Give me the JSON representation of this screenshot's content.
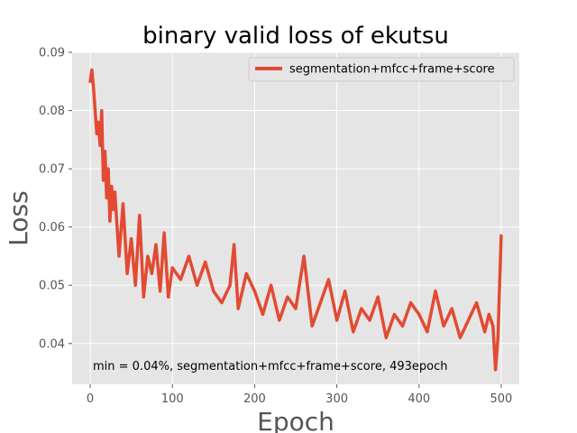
{
  "chart_data": {
    "type": "line",
    "title": "binary valid loss of ekutsu",
    "xlabel": "Epoch",
    "ylabel": "Loss",
    "xlim": [
      -22,
      522
    ],
    "ylim": [
      0.033,
      0.09
    ],
    "xticks": [
      0,
      100,
      200,
      300,
      400,
      500
    ],
    "yticks": [
      0.04,
      0.05,
      0.06,
      0.07,
      0.08,
      0.09
    ],
    "xtick_labels": [
      "0",
      "100",
      "200",
      "300",
      "400",
      "500"
    ],
    "ytick_labels": [
      "0.04",
      "0.05",
      "0.06",
      "0.07",
      "0.08",
      "0.09"
    ],
    "grid": true,
    "background": "#e5e5e5",
    "legend_position": "top-right",
    "series": [
      {
        "name": "segmentation+mfcc+frame+score",
        "color": "#e24a33",
        "x": [
          0,
          2,
          4,
          6,
          8,
          10,
          12,
          14,
          16,
          18,
          20,
          22,
          24,
          26,
          28,
          30,
          35,
          40,
          45,
          50,
          55,
          60,
          65,
          70,
          75,
          80,
          85,
          90,
          95,
          100,
          110,
          120,
          130,
          140,
          150,
          160,
          170,
          175,
          180,
          190,
          200,
          210,
          220,
          230,
          240,
          250,
          260,
          270,
          280,
          290,
          300,
          310,
          320,
          330,
          340,
          350,
          360,
          370,
          380,
          390,
          400,
          410,
          420,
          430,
          440,
          450,
          460,
          470,
          480,
          485,
          490,
          493,
          496,
          500
        ],
        "y": [
          0.085,
          0.087,
          0.084,
          0.08,
          0.076,
          0.078,
          0.074,
          0.08,
          0.068,
          0.073,
          0.065,
          0.07,
          0.061,
          0.067,
          0.063,
          0.066,
          0.055,
          0.064,
          0.052,
          0.058,
          0.05,
          0.062,
          0.048,
          0.055,
          0.052,
          0.057,
          0.049,
          0.059,
          0.048,
          0.053,
          0.051,
          0.055,
          0.05,
          0.054,
          0.049,
          0.047,
          0.05,
          0.057,
          0.046,
          0.052,
          0.049,
          0.045,
          0.05,
          0.044,
          0.048,
          0.046,
          0.055,
          0.043,
          0.047,
          0.051,
          0.044,
          0.049,
          0.042,
          0.046,
          0.044,
          0.048,
          0.041,
          0.045,
          0.043,
          0.047,
          0.045,
          0.042,
          0.049,
          0.043,
          0.046,
          0.041,
          0.044,
          0.047,
          0.042,
          0.045,
          0.043,
          0.0355,
          0.041,
          0.0585
        ]
      }
    ],
    "annotation": "min  = 0.04%, segmentation+mfcc+frame+score, 493epoch"
  }
}
